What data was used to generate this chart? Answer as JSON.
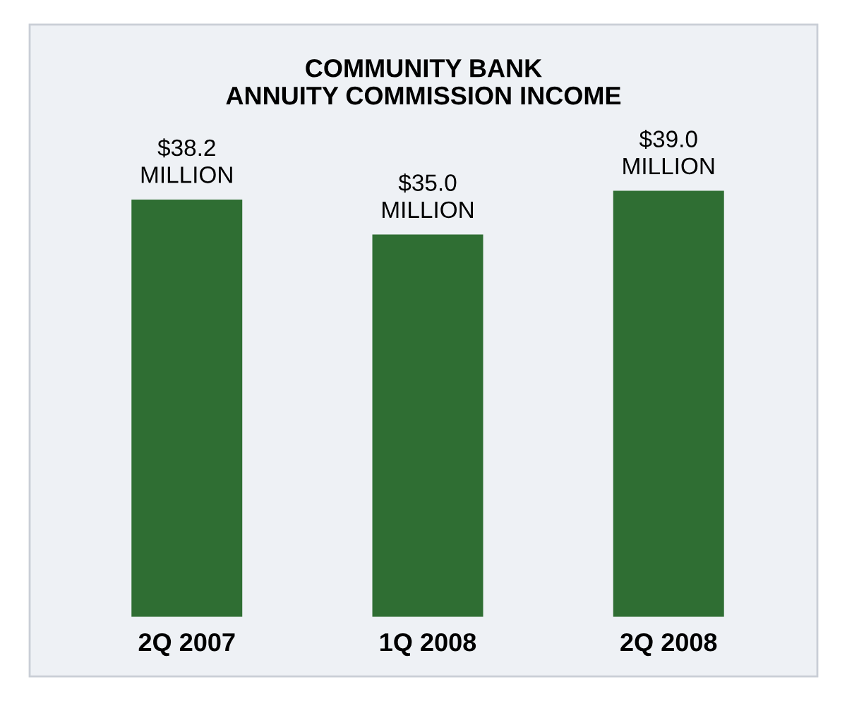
{
  "chart_data": {
    "type": "bar",
    "title": "COMMUNITY BANK\nANNUITY COMMISSION INCOME",
    "categories": [
      "2Q 2007",
      "1Q 2008",
      "2Q 2008"
    ],
    "values": [
      38.2,
      35.0,
      39.0
    ],
    "value_labels": [
      "$38.2\nMILLION",
      "$35.0\nMILLION",
      "$39.0\nMILLION"
    ],
    "color": "#2f6e33",
    "grid": false,
    "legend": false
  }
}
